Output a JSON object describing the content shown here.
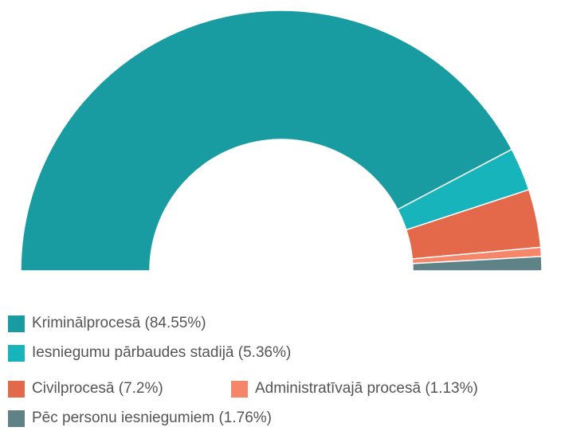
{
  "chart_data": {
    "type": "semi-donut",
    "categories": [
      "Kriminālprocesā (84.55%)",
      "Iesniegumu pārbaudes stadijā (5.36%)",
      "Civilprocesā (7.2%)",
      "Administratīvajā procesā (1.13%)",
      "Pēc personu iesniegumiem (1.76%)"
    ],
    "values": [
      84.55,
      5.36,
      7.2,
      1.13,
      1.76
    ],
    "colors": [
      "#189ca2",
      "#17b4bc",
      "#e4694a",
      "#f5866a",
      "#5f8286"
    ],
    "legend": "bottom-left"
  }
}
